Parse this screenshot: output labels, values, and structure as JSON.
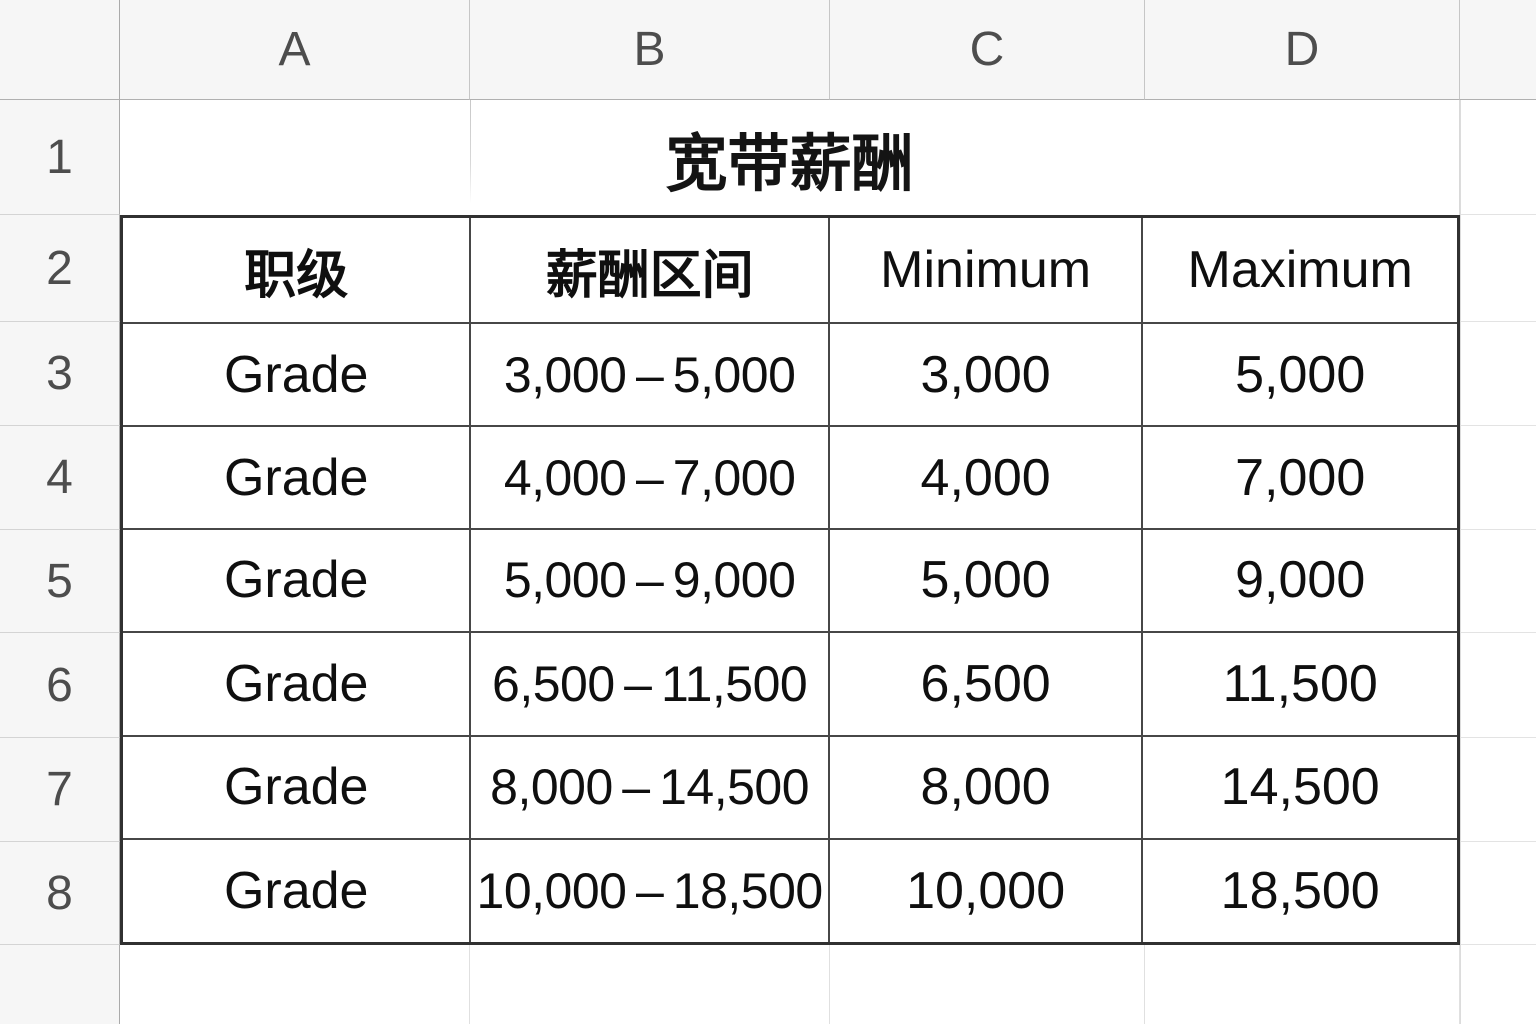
{
  "sheet": {
    "column_headers": [
      "A",
      "B",
      "C",
      "D"
    ],
    "row_headers": [
      "1",
      "2",
      "3",
      "4",
      "5",
      "6",
      "7",
      "8"
    ],
    "title": "宽带薪酬",
    "table": {
      "headers": [
        "职级",
        "薪酬区间",
        "Minimum",
        "Maximum"
      ],
      "data": [
        [
          "Grade",
          "3,000 – 5,000",
          "3,000",
          "5,000"
        ],
        [
          "Grade",
          "4,000 – 7,000",
          "4,000",
          "7,000"
        ],
        [
          "Grade",
          "5,000 – 9,000",
          "5,000",
          "9,000"
        ],
        [
          "Grade",
          "6,500 – 11,500",
          "6,500",
          "11,500"
        ],
        [
          "Grade",
          "8,000 – 14,500",
          "8,000",
          "14,500"
        ],
        [
          "Grade",
          "10,000 – 18,500",
          "10,000",
          "18,500"
        ]
      ]
    },
    "colors": {
      "header_bg": "#f6f6f6",
      "header_text": "#4d4d4d",
      "grid_line": "#c6c6c6",
      "table_border": "#313131",
      "cell_text": "#0f0f0f"
    }
  }
}
